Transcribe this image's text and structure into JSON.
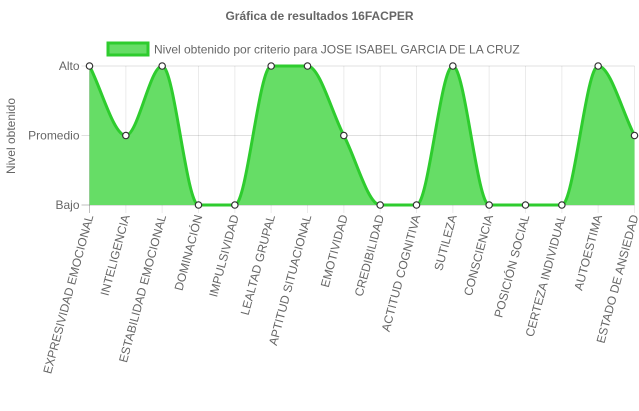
{
  "chart_data": {
    "type": "area",
    "title": "Gráfica de resultados 16FACPER",
    "ylabel": "Nivel obtenido",
    "xlabel": "",
    "y_levels": [
      "Bajo",
      "Promedio",
      "Alto"
    ],
    "categories": [
      "EXPRESIVIDAD EMOCIONAL",
      "INTELIGENCIA",
      "ESTABILIDAD EMOCIONAL",
      "DOMINACIÓN",
      "IMPULSIVIDAD",
      "LEALTAD GRUPAL",
      "APTITUD SITUACIONAL",
      "EMOTIVIDAD",
      "CREDIBILIDAD",
      "ACTITUD COGNITIVA",
      "SUTILEZA",
      "CONSCIENCIA",
      "POSICIÓN SOCIAL",
      "CERTEZA INDIVIDUAL",
      "AUTOESTIMA",
      "ESTADO DE ANSIEDAD"
    ],
    "series": [
      {
        "name": "Nivel obtenido por criterio para JOSE ISABEL GARCIA DE LA CRUZ",
        "values": [
          "Alto",
          "Promedio",
          "Alto",
          "Bajo",
          "Bajo",
          "Alto",
          "Alto",
          "Promedio",
          "Bajo",
          "Bajo",
          "Alto",
          "Bajo",
          "Bajo",
          "Bajo",
          "Alto",
          "Promedio"
        ],
        "fill": "#66dd66",
        "line": "#2ecc2e"
      }
    ],
    "legend_position": "top",
    "grid": true
  }
}
